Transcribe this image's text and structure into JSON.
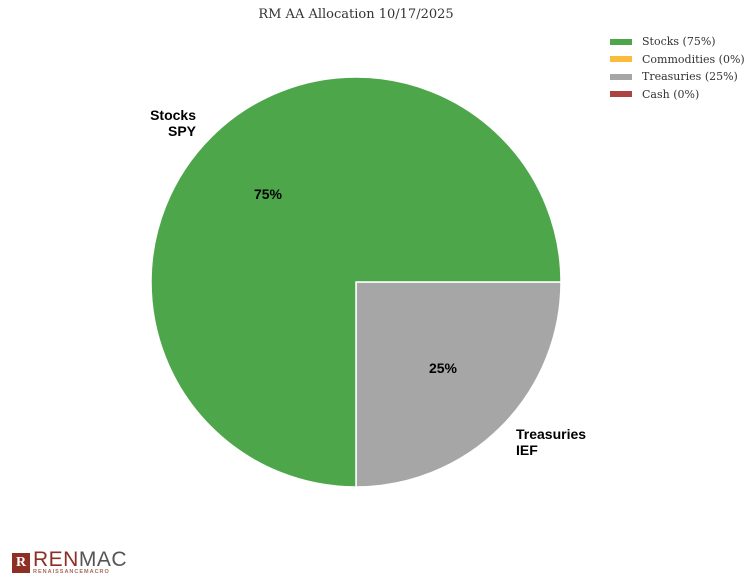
{
  "chart_data": {
    "type": "pie",
    "title": "RM AA Allocation 10/17/2025",
    "slices": [
      {
        "name": "Stocks",
        "ticker": "SPY",
        "value": 75,
        "label": "75%",
        "color": "#4ea64b",
        "legend": "Stocks (75%)"
      },
      {
        "name": "Commodities",
        "value": 0,
        "color": "#fbbc3c",
        "legend": "Commodities (0%)"
      },
      {
        "name": "Treasuries",
        "ticker": "IEF",
        "value": 25,
        "label": "25%",
        "color": "#a6a6a6",
        "legend": "Treasuries (25%)"
      },
      {
        "name": "Cash",
        "value": 0,
        "color": "#a94442",
        "legend": "Cash (0%)"
      }
    ],
    "legend_position": "top-right"
  },
  "logo": {
    "text": "RENMAC",
    "sub": "RENAISSANCEMACRO"
  }
}
